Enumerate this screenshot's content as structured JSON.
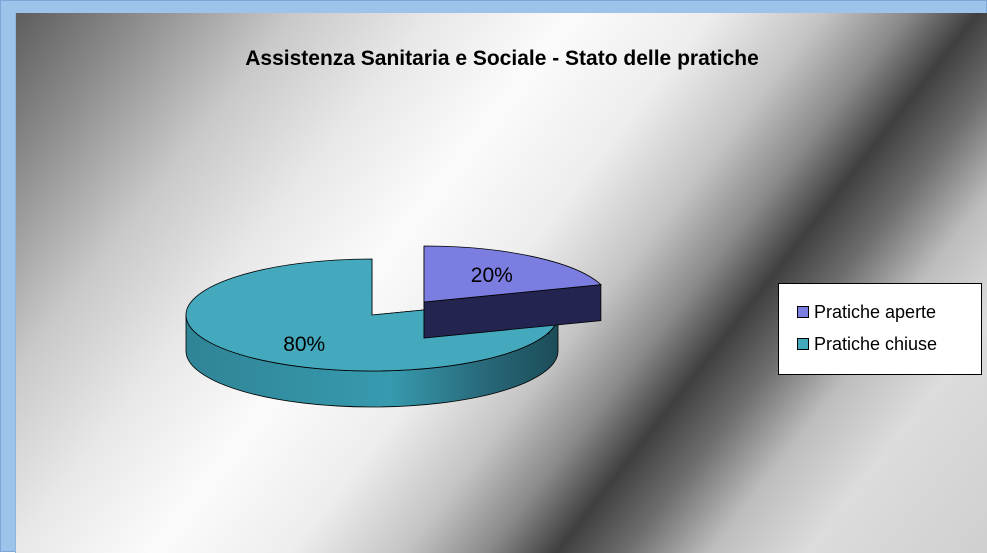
{
  "chart_data": {
    "type": "pie",
    "title": "Assistenza Sanitaria e Sociale - Stato delle pratiche",
    "categories": [
      "Pratiche aperte",
      "Pratiche chiuse"
    ],
    "values": [
      20,
      80
    ],
    "data_labels": [
      "20%",
      "80%"
    ],
    "colors": [
      "#7b7de0",
      "#45a9bd"
    ],
    "legend_placement": "right",
    "exploded": true
  }
}
